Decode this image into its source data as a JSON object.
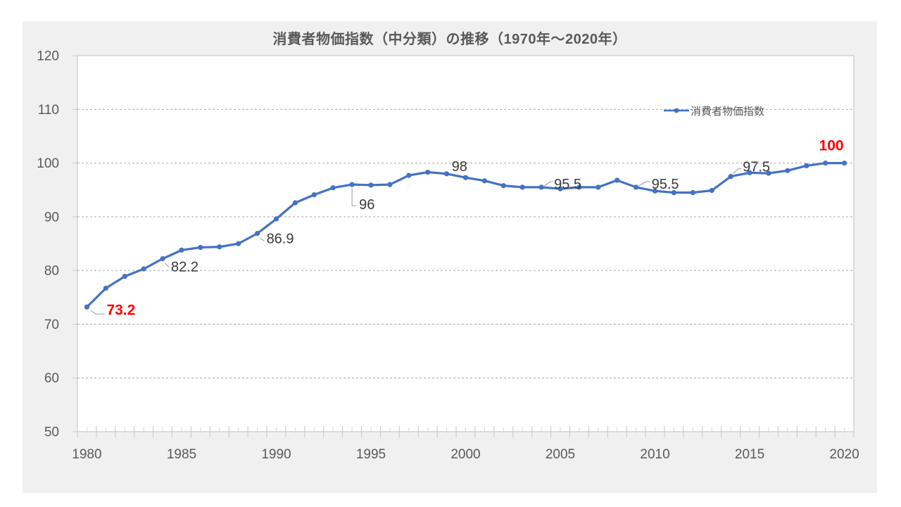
{
  "chart": {
    "title": "消費者物価指数（中分類）の推移（1970年～2020年）",
    "legend": {
      "label": "消費者物価指数"
    },
    "colors": {
      "series": "#4472C4",
      "emphasis_label": "#FF0000",
      "data_label": "#3A3A3A",
      "axis_text": "#595959",
      "gridline": "#A6A6A6",
      "plot_border": "#BFBFBF",
      "tick": "#C9C9C9",
      "minor_tick": "#D8D8D8",
      "leader": "#9B9B9B",
      "panel_background": "#F0F0F0",
      "plot_background": "#FFFFFF"
    }
  },
  "chart_data": {
    "type": "line",
    "title": "消費者物価指数（中分類）の推移（1970年～2020年）",
    "x": [
      1980,
      1981,
      1982,
      1983,
      1984,
      1985,
      1986,
      1987,
      1988,
      1989,
      1990,
      1991,
      1992,
      1993,
      1994,
      1995,
      1996,
      1997,
      1998,
      1999,
      2000,
      2001,
      2002,
      2003,
      2004,
      2005,
      2006,
      2007,
      2008,
      2009,
      2010,
      2011,
      2012,
      2013,
      2014,
      2015,
      2016,
      2017,
      2018,
      2019,
      2020
    ],
    "series": [
      {
        "name": "消費者物価指数",
        "values": [
          73.2,
          76.7,
          78.9,
          80.3,
          82.2,
          83.8,
          84.3,
          84.4,
          85.0,
          86.9,
          89.6,
          92.6,
          94.1,
          95.4,
          96.0,
          95.9,
          96.0,
          97.7,
          98.3,
          98.0,
          97.3,
          96.7,
          95.8,
          95.5,
          95.5,
          95.2,
          95.5,
          95.5,
          96.8,
          95.5,
          94.8,
          94.5,
          94.5,
          94.9,
          97.5,
          98.2,
          98.1,
          98.6,
          99.5,
          100.0,
          100.0
        ]
      }
    ],
    "ylim": [
      50,
      120
    ],
    "y_ticks": [
      120,
      110,
      100,
      90,
      80,
      70,
      60,
      50
    ],
    "x_tick_labels": [
      1980,
      1985,
      1990,
      1995,
      2000,
      2005,
      2010,
      2015,
      2020
    ],
    "grid": "horizontal-dashed",
    "legend_position": "inside-top-right",
    "data_labels": [
      {
        "year": 1980,
        "text": "73.2",
        "emphasis": true
      },
      {
        "year": 1984,
        "text": "82.2",
        "emphasis": false
      },
      {
        "year": 1989,
        "text": "86.9",
        "emphasis": false
      },
      {
        "year": 1994,
        "text": "96",
        "emphasis": false
      },
      {
        "year": 1999,
        "text": "98",
        "emphasis": false
      },
      {
        "year": 2004,
        "text": "95.5",
        "emphasis": false
      },
      {
        "year": 2009,
        "text": "95.5",
        "emphasis": false
      },
      {
        "year": 2014,
        "text": "97.5",
        "emphasis": false
      },
      {
        "year": 2020,
        "text": "100",
        "emphasis": true
      }
    ]
  }
}
